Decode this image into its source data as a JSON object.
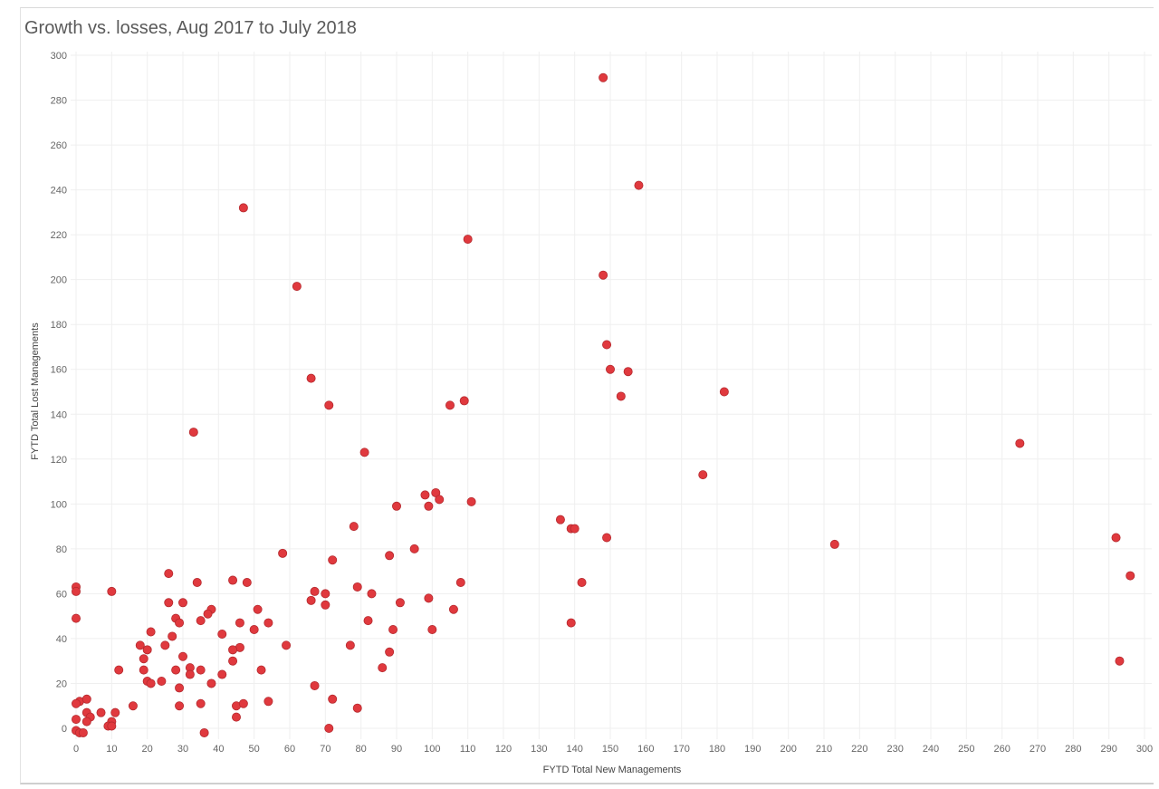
{
  "chart_data": {
    "type": "scatter",
    "title": "Growth vs. losses, Aug 2017 to July 2018",
    "xlabel": "FYTD Total New Managements",
    "ylabel": "FYTD Total Lost Managements",
    "xlim": [
      0,
      300
    ],
    "ylim": [
      0,
      300
    ],
    "x_ticks": [
      0,
      10,
      20,
      30,
      40,
      50,
      60,
      70,
      80,
      90,
      100,
      110,
      120,
      130,
      140,
      150,
      160,
      170,
      180,
      190,
      200,
      210,
      220,
      230,
      240,
      250,
      260,
      270,
      280,
      290,
      300
    ],
    "y_ticks": [
      0,
      20,
      40,
      60,
      80,
      100,
      120,
      140,
      160,
      180,
      200,
      220,
      240,
      260,
      280,
      300
    ],
    "grid": true,
    "marker_color": "#e0393e",
    "points": [
      [
        148,
        290
      ],
      [
        158,
        242
      ],
      [
        47,
        232
      ],
      [
        110,
        218
      ],
      [
        148,
        202
      ],
      [
        62,
        197
      ],
      [
        149,
        171
      ],
      [
        150,
        160
      ],
      [
        155,
        159
      ],
      [
        66,
        156
      ],
      [
        153,
        148
      ],
      [
        182,
        150
      ],
      [
        109,
        146
      ],
      [
        71,
        144
      ],
      [
        105,
        144
      ],
      [
        33,
        132
      ],
      [
        265,
        127
      ],
      [
        81,
        123
      ],
      [
        176,
        113
      ],
      [
        101,
        105
      ],
      [
        98,
        104
      ],
      [
        102,
        102
      ],
      [
        111,
        101
      ],
      [
        90,
        99
      ],
      [
        99,
        99
      ],
      [
        136,
        93
      ],
      [
        139,
        89
      ],
      [
        140,
        89
      ],
      [
        78,
        90
      ],
      [
        292,
        85
      ],
      [
        149,
        85
      ],
      [
        213,
        82
      ],
      [
        95,
        80
      ],
      [
        58,
        78
      ],
      [
        88,
        77
      ],
      [
        72,
        75
      ],
      [
        26,
        69
      ],
      [
        296,
        68
      ],
      [
        44,
        66
      ],
      [
        34,
        65
      ],
      [
        48,
        65
      ],
      [
        108,
        65
      ],
      [
        142,
        65
      ],
      [
        79,
        63
      ],
      [
        0,
        63
      ],
      [
        0,
        61
      ],
      [
        10,
        61
      ],
      [
        67,
        61
      ],
      [
        70,
        60
      ],
      [
        83,
        60
      ],
      [
        99,
        58
      ],
      [
        26,
        56
      ],
      [
        30,
        56
      ],
      [
        66,
        57
      ],
      [
        70,
        55
      ],
      [
        91,
        56
      ],
      [
        38,
        53
      ],
      [
        51,
        53
      ],
      [
        37,
        51
      ],
      [
        106,
        53
      ],
      [
        0,
        49
      ],
      [
        28,
        49
      ],
      [
        29,
        47
      ],
      [
        35,
        48
      ],
      [
        46,
        47
      ],
      [
        54,
        47
      ],
      [
        82,
        48
      ],
      [
        139,
        47
      ],
      [
        50,
        44
      ],
      [
        89,
        44
      ],
      [
        100,
        44
      ],
      [
        21,
        43
      ],
      [
        27,
        41
      ],
      [
        41,
        42
      ],
      [
        18,
        37
      ],
      [
        25,
        37
      ],
      [
        46,
        36
      ],
      [
        59,
        37
      ],
      [
        77,
        37
      ],
      [
        20,
        35
      ],
      [
        44,
        35
      ],
      [
        88,
        34
      ],
      [
        19,
        31
      ],
      [
        30,
        32
      ],
      [
        44,
        30
      ],
      [
        32,
        27
      ],
      [
        12,
        26
      ],
      [
        19,
        26
      ],
      [
        28,
        26
      ],
      [
        35,
        26
      ],
      [
        52,
        26
      ],
      [
        86,
        27
      ],
      [
        32,
        24
      ],
      [
        41,
        24
      ],
      [
        20,
        21
      ],
      [
        24,
        21
      ],
      [
        21,
        20
      ],
      [
        38,
        20
      ],
      [
        67,
        19
      ],
      [
        29,
        18
      ],
      [
        293,
        30
      ],
      [
        1,
        12
      ],
      [
        3,
        13
      ],
      [
        0,
        11
      ],
      [
        16,
        10
      ],
      [
        29,
        10
      ],
      [
        35,
        11
      ],
      [
        45,
        10
      ],
      [
        47,
        11
      ],
      [
        54,
        12
      ],
      [
        72,
        13
      ],
      [
        79,
        9
      ],
      [
        3,
        7
      ],
      [
        7,
        7
      ],
      [
        11,
        7
      ],
      [
        4,
        5
      ],
      [
        45,
        5
      ],
      [
        0,
        4
      ],
      [
        3,
        3
      ],
      [
        10,
        3
      ],
      [
        9,
        1
      ],
      [
        10,
        1
      ],
      [
        71,
        0
      ],
      [
        0,
        -1
      ],
      [
        1,
        -2
      ],
      [
        2,
        -2
      ],
      [
        36,
        -2
      ]
    ]
  }
}
